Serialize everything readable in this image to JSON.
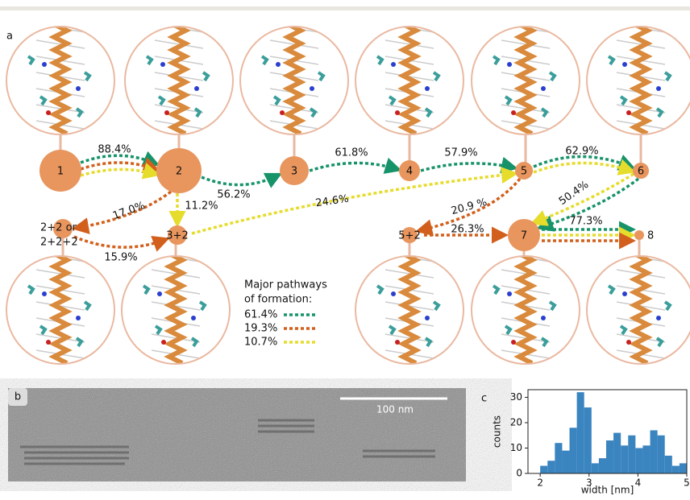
{
  "panel_labels": [
    "a",
    "b",
    "c"
  ],
  "diagram": {
    "nodes": [
      "1",
      "2",
      "3",
      "4",
      "5",
      "6",
      "7",
      "8",
      "3+2",
      "5+2"
    ],
    "complex_node": [
      "2+2 or",
      "2+2+2"
    ],
    "edges": [
      "88.4%",
      "56.2%",
      "61.8%",
      "57.9%",
      "62.9%",
      "17.0%",
      "11.2%",
      "24.6%",
      "20.9 %",
      "50.4%",
      "15.9%",
      "26.3%",
      "77.3%"
    ],
    "legend": {
      "title_lines": [
        "Major pathways",
        "of formation:"
      ],
      "entries": [
        "61.4%",
        "19.3%",
        "10.7%"
      ]
    }
  },
  "micrograph": {
    "scale_bar": "100 nm"
  },
  "chart_data": {
    "type": "histogram",
    "xlabel": "width [nm]",
    "ylabel": "counts",
    "color": "#3a84c0",
    "bins": [
      2,
      2.15,
      2.3,
      2.45,
      2.6,
      2.75,
      2.9,
      3.05,
      3.2,
      3.35,
      3.5,
      3.65,
      3.8,
      3.95,
      4.1,
      4.25,
      4.4,
      4.55,
      4.7,
      4.85,
      5
    ],
    "values": [
      3,
      5,
      12,
      9,
      18,
      32,
      26,
      4,
      6,
      13,
      16,
      11,
      15,
      10,
      11,
      17,
      15,
      7,
      3,
      4
    ],
    "xlim": [
      1.75,
      5
    ],
    "ylim": [
      0,
      33
    ],
    "xticks": [
      2,
      3,
      4,
      5
    ],
    "yticks": [
      0,
      10,
      20,
      30
    ]
  }
}
